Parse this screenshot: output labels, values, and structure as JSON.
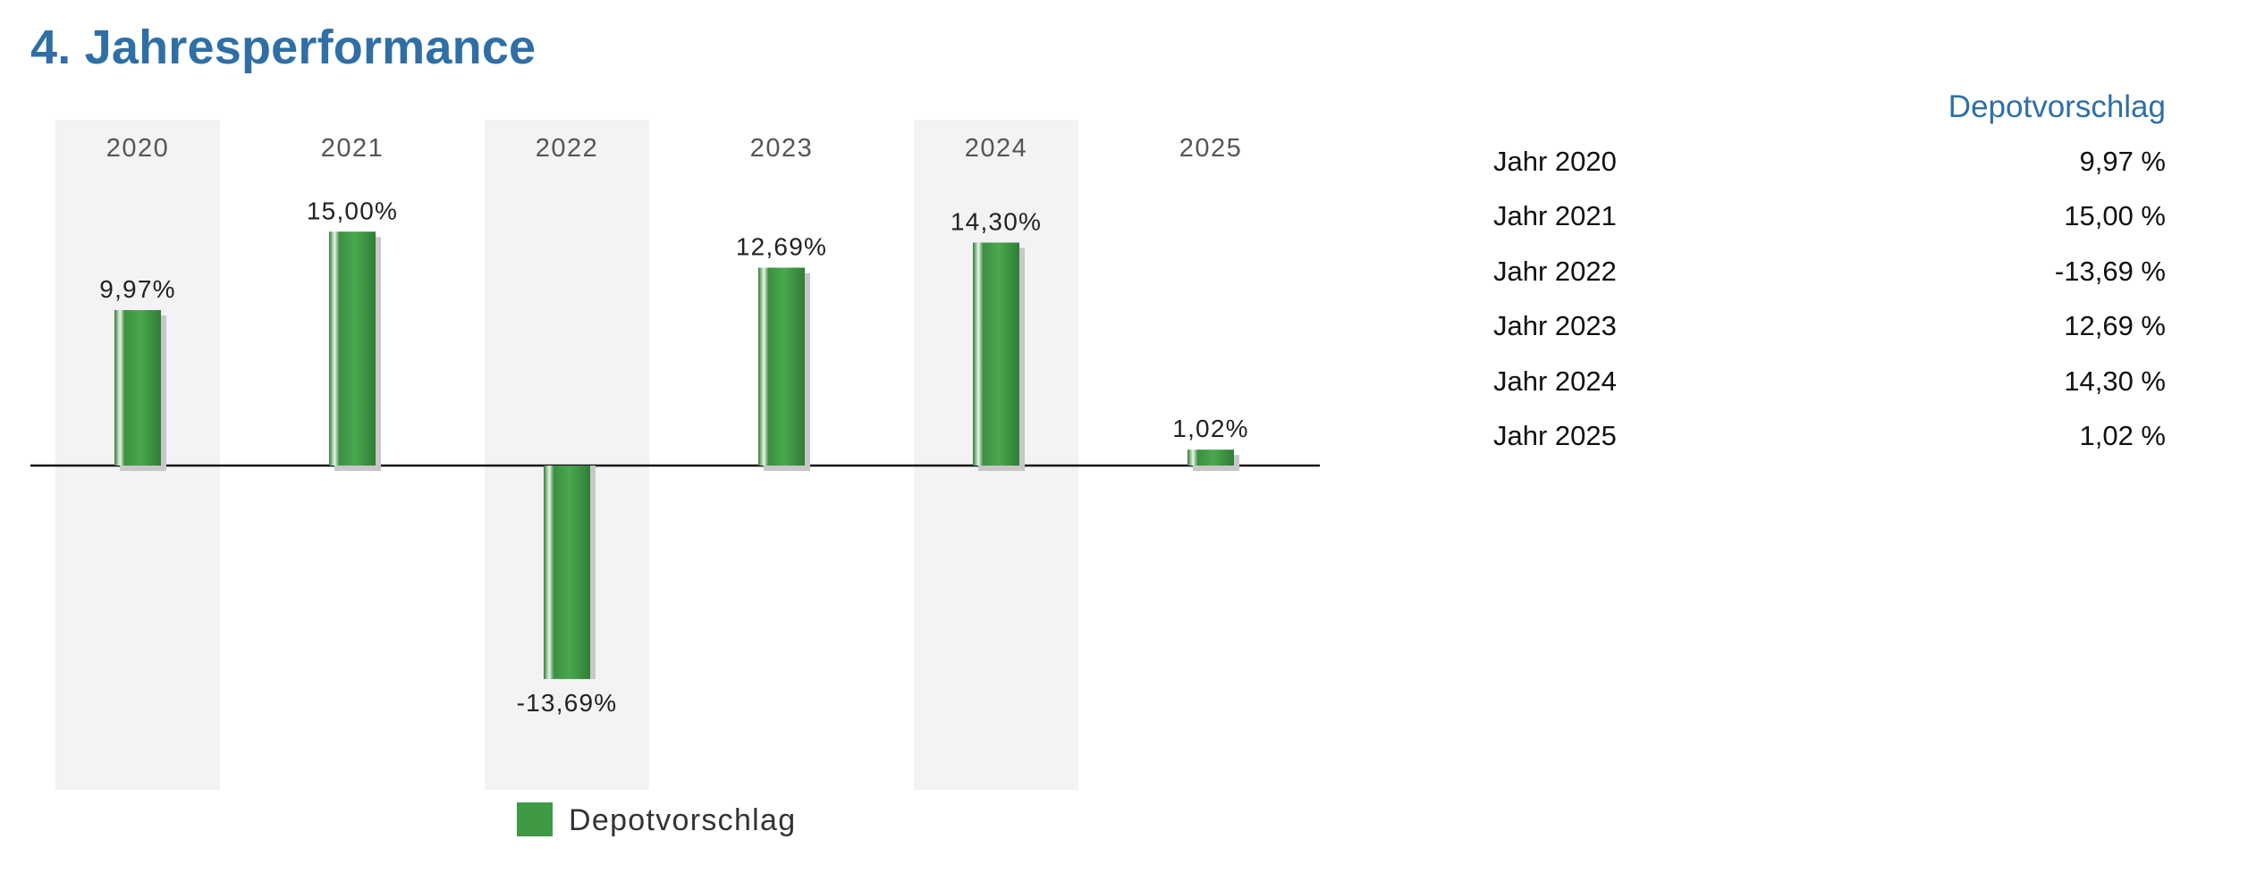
{
  "page": {
    "title": "4. Jahresperformance"
  },
  "colors": {
    "title": "#2f6fa6",
    "bar": "#3e9a45",
    "bar_dark": "#2f7d36",
    "bar_light": "#6fc06f",
    "shadow": "#c7c7c7",
    "band": "#f3f2f4",
    "baseline": "#111111"
  },
  "chart_data": {
    "type": "bar",
    "categories": [
      "2020",
      "2021",
      "2022",
      "2023",
      "2024",
      "2025"
    ],
    "series": [
      {
        "name": "Depotvorschlag",
        "values": [
          9.97,
          15.0,
          -13.69,
          12.69,
          14.3,
          1.02
        ]
      }
    ],
    "data_labels": [
      "9,97%",
      "15,00%",
      "-13,69%",
      "12,69%",
      "14,30%",
      "1,02%"
    ],
    "title": "",
    "xlabel": "",
    "ylabel": "",
    "ylim": [
      -20,
      20
    ],
    "grid": false,
    "legend": {
      "position": "bottom",
      "label": "Depotvorschlag"
    }
  },
  "table": {
    "header": "Depotvorschlag",
    "rows": [
      {
        "label": "Jahr 2020",
        "value": "9,97 %"
      },
      {
        "label": "Jahr 2021",
        "value": "15,00 %"
      },
      {
        "label": "Jahr 2022",
        "value": "-13,69 %"
      },
      {
        "label": "Jahr 2023",
        "value": "12,69 %"
      },
      {
        "label": "Jahr 2024",
        "value": "14,30 %"
      },
      {
        "label": "Jahr 2025",
        "value": "1,02 %"
      }
    ]
  }
}
